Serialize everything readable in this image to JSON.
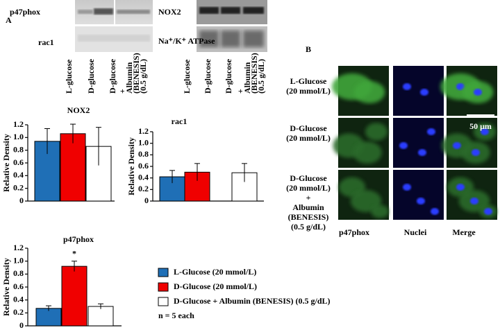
{
  "panel_a": {
    "label": "A",
    "blot_left": {
      "rows": [
        "p47phox",
        "rac1"
      ]
    },
    "blot_right": {
      "rows": [
        "NOX2",
        "Na⁺/K⁺ ATPase"
      ]
    },
    "lanes_left": [
      [
        "L-glucose"
      ],
      [
        "D-glucose"
      ],
      [
        "D-glucose"
      ],
      [
        "+",
        "Albumin",
        "(BENESIS)",
        "(0.5 g/dL)"
      ]
    ],
    "lanes_right": [
      [
        "L-glucose"
      ],
      [
        "D-glucose"
      ],
      [
        "D-glucose"
      ],
      [
        "+",
        "Albumin",
        "(BENESIS)",
        "(0.5 g/dL)"
      ]
    ]
  },
  "chart_data": [
    {
      "type": "bar",
      "title": "NOX2",
      "y_label": "Relative Density",
      "values": [
        0.94,
        1.06,
        0.86
      ],
      "errors": [
        0.2,
        0.15,
        0.3
      ],
      "colors": [
        "#1f6fb6",
        "#f00000",
        "#ffffff"
      ],
      "ylim": [
        0,
        1.2
      ],
      "yticks": [
        0,
        0.2,
        0.4,
        0.6,
        0.8,
        {
          "value": 1,
          "label": "1.0"
        },
        1.2
      ]
    },
    {
      "type": "bar",
      "title": "rac1",
      "y_label": "Relative Density",
      "values": [
        0.42,
        0.5,
        0.49
      ],
      "errors": [
        0.11,
        0.15,
        0.16
      ],
      "colors": [
        "#1f6fb6",
        "#f00000",
        "#ffffff"
      ],
      "ylim": [
        0,
        1.2
      ],
      "yticks": [
        0,
        0.2,
        0.4,
        0.6,
        0.8,
        {
          "value": 1,
          "label": "1.0"
        },
        1.2
      ]
    },
    {
      "type": "bar",
      "title": "p47phox",
      "y_label": "Relative Density",
      "annotation": "*",
      "values": [
        0.27,
        0.92,
        0.3
      ],
      "errors": [
        0.04,
        0.08,
        0.04
      ],
      "colors": [
        "#1f6fb6",
        "#f00000",
        "#ffffff"
      ],
      "ylim": [
        0,
        1.2
      ],
      "yticks": [
        0,
        0.2,
        0.4,
        0.6,
        0.8,
        {
          "value": 1,
          "label": "1.0"
        },
        1.2
      ]
    }
  ],
  "legend": {
    "entries": [
      {
        "label": "L-Glucose (20 mmol/L)",
        "color": "#1f6fb6"
      },
      {
        "label": "D-Glucose (20 mmol/L)",
        "color": "#f00000"
      },
      {
        "label": "D-Glucose + Albumin (BENESIS)  (0.5 g/dL)",
        "color": "#ffffff"
      }
    ],
    "note": "n = 5 each"
  },
  "panel_b": {
    "label": "B",
    "rows": [
      [
        "L-Glucose",
        "(20 mmol/L)"
      ],
      [
        "D-Glucose",
        "(20 mmol/L)"
      ],
      [
        "D-Glucose",
        "(20 mmol/L)",
        "+",
        "Albumin",
        "(BENESIS)",
        "(0.5 g/dL)"
      ]
    ],
    "columns": [
      "p47phox",
      "Nuclei",
      "Merge"
    ],
    "scale_bar": "50 μm"
  }
}
